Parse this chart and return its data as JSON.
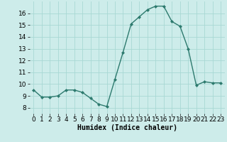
{
  "x": [
    0,
    1,
    2,
    3,
    4,
    5,
    6,
    7,
    8,
    9,
    10,
    11,
    12,
    13,
    14,
    15,
    16,
    17,
    18,
    19,
    20,
    21,
    22,
    23
  ],
  "y": [
    9.5,
    8.9,
    8.9,
    9.0,
    9.5,
    9.5,
    9.3,
    8.8,
    8.3,
    8.1,
    10.4,
    12.7,
    15.1,
    15.7,
    16.3,
    16.6,
    16.6,
    15.3,
    14.9,
    13.0,
    9.9,
    10.2,
    10.1,
    10.1
  ],
  "line_color": "#2d7a6e",
  "marker": "D",
  "marker_size": 2,
  "bg_color": "#cdecea",
  "grid_color": "#a8d8d4",
  "xlabel": "Humidex (Indice chaleur)",
  "xlabel_fontsize": 7,
  "ylim": [
    7.5,
    17.0
  ],
  "xlim": [
    -0.5,
    23.5
  ],
  "yticks": [
    8,
    9,
    10,
    11,
    12,
    13,
    14,
    15,
    16
  ],
  "xticks": [
    0,
    1,
    2,
    3,
    4,
    5,
    6,
    7,
    8,
    9,
    10,
    11,
    12,
    13,
    14,
    15,
    16,
    17,
    18,
    19,
    20,
    21,
    22,
    23
  ],
  "tick_fontsize": 6.5,
  "linewidth": 1.0
}
